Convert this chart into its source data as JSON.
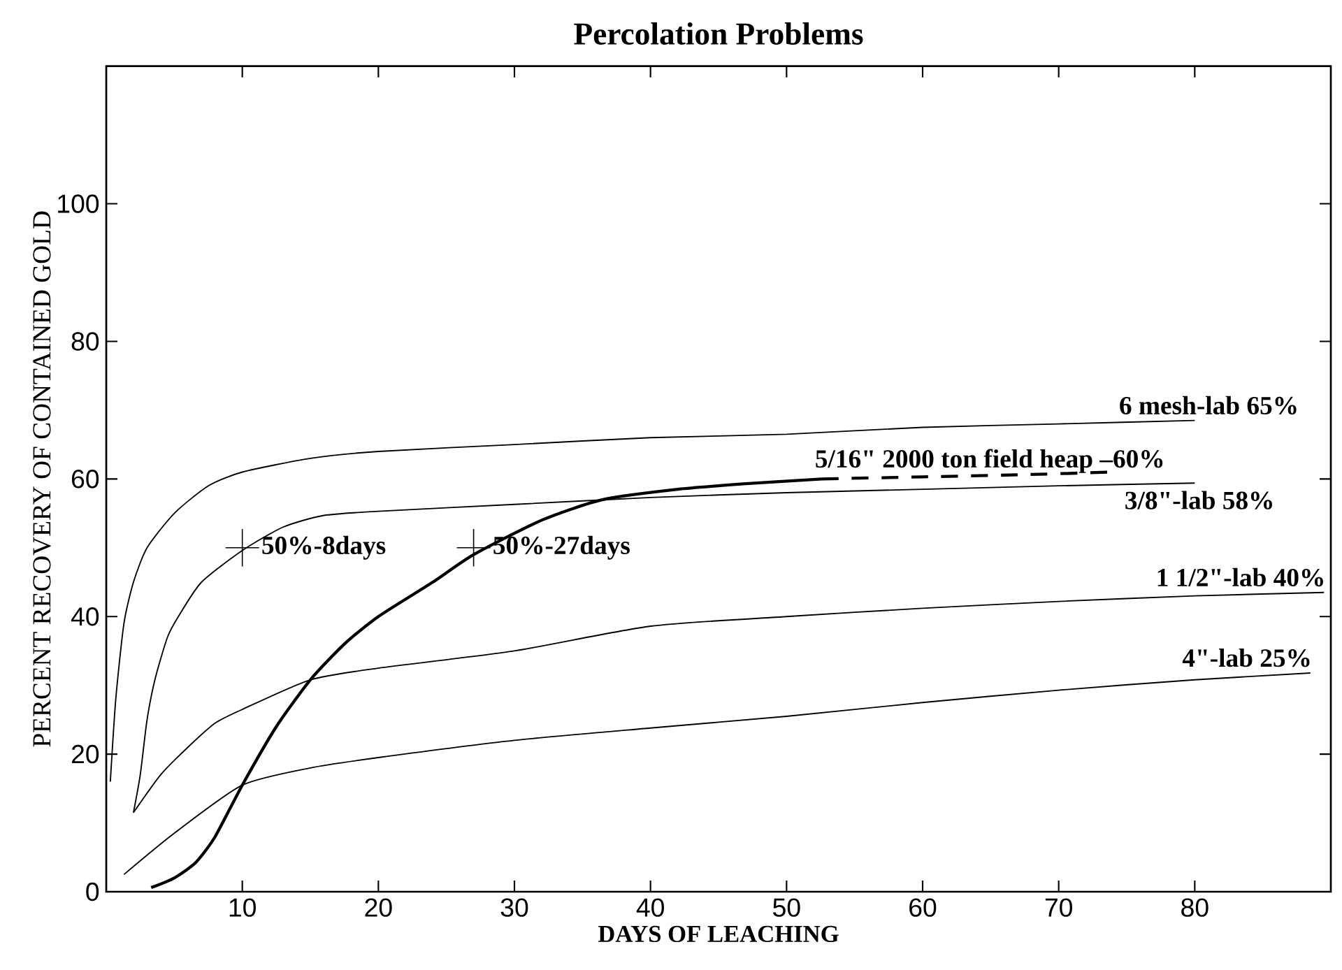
{
  "chart_data": {
    "type": "line",
    "title": "Percolation Problems",
    "xlabel": "DAYS OF LEACHING",
    "ylabel": "PERCENT RECOVERY OF CONTAINED GOLD",
    "xlim": [
      0,
      90
    ],
    "ylim": [
      0,
      120
    ],
    "xticks": [
      10,
      20,
      30,
      40,
      50,
      60,
      70,
      80
    ],
    "yticks": [
      0,
      20,
      40,
      60,
      80,
      100
    ],
    "grid": false,
    "legend": false,
    "marker": "none",
    "series": [
      {
        "name": "6 mesh-lab  65%",
        "color": "#000000",
        "line_style": "solid",
        "x": [
          0.3,
          0.7,
          1.3,
          2,
          3,
          5,
          7.5,
          10,
          15,
          20,
          30,
          40,
          50,
          60,
          70,
          80
        ],
        "values": [
          16,
          28,
          39,
          45,
          50,
          55,
          59,
          61,
          63,
          64,
          65,
          66,
          66.5,
          67.5,
          68,
          68.5
        ]
      },
      {
        "name": "5/16\" 2000 ton field heap –60%",
        "color": "#000000",
        "line_style": "solid",
        "x": [
          3.3,
          5,
          6.6,
          8,
          10,
          12.5,
          15,
          17.5,
          20,
          24,
          27,
          32,
          36.5,
          42,
          47,
          52.6
        ],
        "values": [
          0.6,
          2,
          4.3,
          8,
          15.5,
          24,
          30.8,
          36,
          40,
          45,
          49,
          54,
          57,
          58.5,
          59.3,
          60
        ]
      },
      {
        "color": "#000000",
        "line_style": "dashed",
        "x": [
          52.6,
          60,
          67,
          74
        ],
        "values": [
          60,
          60.3,
          60.6,
          61
        ]
      },
      {
        "name": "3/8\"-lab  58%",
        "color": "#000000",
        "line_style": "solid",
        "x": [
          2,
          2.5,
          3,
          3.6,
          4.5,
          5.3,
          7,
          10,
          13,
          16,
          20,
          30,
          40,
          50,
          60,
          70,
          80
        ],
        "values": [
          11.5,
          17,
          25,
          31,
          37,
          40,
          45,
          49.6,
          53,
          54.7,
          55.3,
          56.3,
          57.3,
          58,
          58.5,
          59,
          59.4
        ]
      },
      {
        "name": "1 1/2\"-lab  40%",
        "color": "#000000",
        "line_style": "solid",
        "x": [
          2,
          4,
          6,
          8,
          10,
          15,
          20,
          30,
          40,
          50,
          60,
          70,
          80,
          89.5
        ],
        "values": [
          11.5,
          17,
          21,
          24.5,
          26.5,
          30.8,
          32.5,
          35,
          38.6,
          40,
          41.2,
          42.2,
          43,
          43.5
        ]
      },
      {
        "name": "4\"-lab   25%",
        "color": "#000000",
        "line_style": "solid",
        "x": [
          1.3,
          5,
          10,
          15,
          20,
          30,
          40,
          50,
          60,
          70,
          80,
          88.5
        ],
        "values": [
          2.5,
          8.5,
          15.5,
          18,
          19.5,
          22,
          23.8,
          25.5,
          27.5,
          29.3,
          30.8,
          31.8
        ]
      }
    ],
    "annotations": [
      {
        "text": "50%-8days",
        "x": 10,
        "y": 50
      },
      {
        "text": "50%-27days",
        "x": 27,
        "y": 50
      }
    ]
  }
}
